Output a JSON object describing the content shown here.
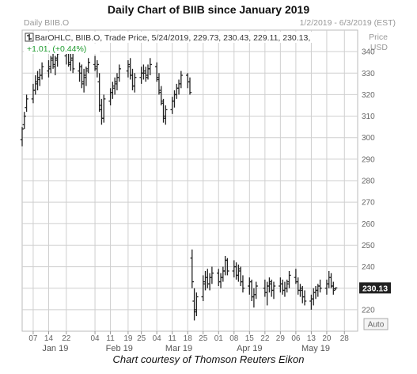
{
  "title": "Daily Chart of BIIB since January 2019",
  "caption": "Chart courtesy of Thomson Reuters Eikon",
  "header": {
    "panel_label": "Daily BIIB.O",
    "date_range": "1/2/2019 - 6/3/2019 (EST)",
    "price_label": "Price",
    "currency": "USD",
    "legend_line": "BarOHLC, BIIB.O, Trade Price, 5/24/2019, 229.73, 230.43, 229.11, 230.13,",
    "change_line": "+1.01, (+0.44%)"
  },
  "auto_button": "Auto",
  "last_price_tag": "230.13",
  "colors": {
    "bars": "#222222",
    "change": "#1e9b2e",
    "last_tag_bg": "#222222",
    "grid": "#cfcfcf"
  },
  "chart_data": {
    "type": "ohlc",
    "ticker": "BIIB.O",
    "ylim": [
      210,
      350
    ],
    "y_ticks": [
      220,
      230,
      240,
      250,
      260,
      270,
      280,
      290,
      300,
      310,
      320,
      330,
      340
    ],
    "x_range": [
      "2019-01-02",
      "2019-06-03"
    ],
    "x_day_ticks": [
      {
        "label": "07",
        "date": "2019-01-07"
      },
      {
        "label": "14",
        "date": "2019-01-14"
      },
      {
        "label": "22",
        "date": "2019-01-22"
      },
      {
        "label": "04",
        "date": "2019-02-04"
      },
      {
        "label": "11",
        "date": "2019-02-11"
      },
      {
        "label": "19",
        "date": "2019-02-19"
      },
      {
        "label": "25",
        "date": "2019-02-25"
      },
      {
        "label": "04",
        "date": "2019-03-04"
      },
      {
        "label": "11",
        "date": "2019-03-11"
      },
      {
        "label": "18",
        "date": "2019-03-18"
      },
      {
        "label": "25",
        "date": "2019-03-25"
      },
      {
        "label": "01",
        "date": "2019-04-01"
      },
      {
        "label": "08",
        "date": "2019-04-08"
      },
      {
        "label": "15",
        "date": "2019-04-15"
      },
      {
        "label": "22",
        "date": "2019-04-22"
      },
      {
        "label": "29",
        "date": "2019-04-29"
      },
      {
        "label": "06",
        "date": "2019-05-06"
      },
      {
        "label": "13",
        "date": "2019-05-13"
      },
      {
        "label": "20",
        "date": "2019-05-20"
      },
      {
        "label": "28",
        "date": "2019-05-28"
      }
    ],
    "x_month_ticks": [
      {
        "label": "Jan 19",
        "date": "2019-01-17"
      },
      {
        "label": "Feb 19",
        "date": "2019-02-15"
      },
      {
        "label": "Mar 19",
        "date": "2019-03-14"
      },
      {
        "label": "Apr 19",
        "date": "2019-04-15"
      },
      {
        "label": "May 19",
        "date": "2019-05-15"
      }
    ],
    "bars": [
      {
        "date": "2019-01-02",
        "o": 299,
        "h": 305,
        "l": 296,
        "c": 304
      },
      {
        "date": "2019-01-03",
        "o": 306,
        "h": 312,
        "l": 304,
        "c": 310
      },
      {
        "date": "2019-01-04",
        "o": 314,
        "h": 320,
        "l": 312,
        "c": 318
      },
      {
        "date": "2019-01-07",
        "o": 318,
        "h": 325,
        "l": 316,
        "c": 322
      },
      {
        "date": "2019-01-08",
        "o": 322,
        "h": 329,
        "l": 320,
        "c": 326
      },
      {
        "date": "2019-01-09",
        "o": 325,
        "h": 331,
        "l": 322,
        "c": 328
      },
      {
        "date": "2019-01-10",
        "o": 327,
        "h": 332,
        "l": 324,
        "c": 329
      },
      {
        "date": "2019-01-11",
        "o": 329,
        "h": 335,
        "l": 327,
        "c": 333
      },
      {
        "date": "2019-01-14",
        "o": 331,
        "h": 336,
        "l": 328,
        "c": 332
      },
      {
        "date": "2019-01-15",
        "o": 333,
        "h": 338,
        "l": 330,
        "c": 337
      },
      {
        "date": "2019-01-16",
        "o": 336,
        "h": 340,
        "l": 332,
        "c": 334
      },
      {
        "date": "2019-01-17",
        "o": 333,
        "h": 338,
        "l": 329,
        "c": 336
      },
      {
        "date": "2019-01-18",
        "o": 337,
        "h": 341,
        "l": 333,
        "c": 339
      },
      {
        "date": "2019-01-22",
        "o": 338,
        "h": 343,
        "l": 334,
        "c": 340
      },
      {
        "date": "2019-01-23",
        "o": 340,
        "h": 342,
        "l": 333,
        "c": 335
      },
      {
        "date": "2019-01-24",
        "o": 334,
        "h": 339,
        "l": 331,
        "c": 337
      },
      {
        "date": "2019-01-25",
        "o": 336,
        "h": 339,
        "l": 330,
        "c": 332
      },
      {
        "date": "2019-01-28",
        "o": 331,
        "h": 335,
        "l": 326,
        "c": 333
      },
      {
        "date": "2019-01-29",
        "o": 330,
        "h": 334,
        "l": 323,
        "c": 325
      },
      {
        "date": "2019-01-30",
        "o": 326,
        "h": 332,
        "l": 321,
        "c": 329
      },
      {
        "date": "2019-01-31",
        "o": 328,
        "h": 333,
        "l": 324,
        "c": 331
      },
      {
        "date": "2019-02-01",
        "o": 332,
        "h": 337,
        "l": 330,
        "c": 335
      },
      {
        "date": "2019-02-04",
        "o": 334,
        "h": 338,
        "l": 331,
        "c": 332
      },
      {
        "date": "2019-02-05",
        "o": 333,
        "h": 336,
        "l": 328,
        "c": 334
      },
      {
        "date": "2019-02-06",
        "o": 326,
        "h": 330,
        "l": 312,
        "c": 315
      },
      {
        "date": "2019-02-07",
        "o": 313,
        "h": 318,
        "l": 306,
        "c": 309
      },
      {
        "date": "2019-02-08",
        "o": 309,
        "h": 320,
        "l": 307,
        "c": 318
      },
      {
        "date": "2019-02-11",
        "o": 317,
        "h": 323,
        "l": 315,
        "c": 321
      },
      {
        "date": "2019-02-12",
        "o": 321,
        "h": 326,
        "l": 318,
        "c": 324
      },
      {
        "date": "2019-02-13",
        "o": 323,
        "h": 328,
        "l": 320,
        "c": 326
      },
      {
        "date": "2019-02-14",
        "o": 325,
        "h": 330,
        "l": 322,
        "c": 328
      },
      {
        "date": "2019-02-15",
        "o": 328,
        "h": 334,
        "l": 326,
        "c": 332
      },
      {
        "date": "2019-02-19",
        "o": 331,
        "h": 336,
        "l": 328,
        "c": 334
      },
      {
        "date": "2019-02-20",
        "o": 333,
        "h": 337,
        "l": 327,
        "c": 329
      },
      {
        "date": "2019-02-21",
        "o": 329,
        "h": 332,
        "l": 322,
        "c": 324
      },
      {
        "date": "2019-02-22",
        "o": 324,
        "h": 330,
        "l": 321,
        "c": 328
      },
      {
        "date": "2019-02-25",
        "o": 328,
        "h": 333,
        "l": 325,
        "c": 330
      },
      {
        "date": "2019-02-26",
        "o": 330,
        "h": 334,
        "l": 327,
        "c": 331
      },
      {
        "date": "2019-02-27",
        "o": 330,
        "h": 333,
        "l": 326,
        "c": 328
      },
      {
        "date": "2019-02-28",
        "o": 329,
        "h": 334,
        "l": 327,
        "c": 332
      },
      {
        "date": "2019-03-01",
        "o": 332,
        "h": 337,
        "l": 329,
        "c": 334
      },
      {
        "date": "2019-03-04",
        "o": 333,
        "h": 335,
        "l": 326,
        "c": 328
      },
      {
        "date": "2019-03-05",
        "o": 327,
        "h": 330,
        "l": 320,
        "c": 322
      },
      {
        "date": "2019-03-06",
        "o": 321,
        "h": 324,
        "l": 315,
        "c": 317
      },
      {
        "date": "2019-03-07",
        "o": 316,
        "h": 318,
        "l": 307,
        "c": 310
      },
      {
        "date": "2019-03-08",
        "o": 309,
        "h": 315,
        "l": 306,
        "c": 313
      },
      {
        "date": "2019-03-11",
        "o": 313,
        "h": 319,
        "l": 311,
        "c": 317
      },
      {
        "date": "2019-03-12",
        "o": 317,
        "h": 322,
        "l": 314,
        "c": 320
      },
      {
        "date": "2019-03-13",
        "o": 320,
        "h": 325,
        "l": 318,
        "c": 323
      },
      {
        "date": "2019-03-14",
        "o": 323,
        "h": 327,
        "l": 320,
        "c": 325
      },
      {
        "date": "2019-03-15",
        "o": 325,
        "h": 331,
        "l": 323,
        "c": 329
      },
      {
        "date": "2019-03-18",
        "o": 329,
        "h": 330,
        "l": 323,
        "c": 326
      },
      {
        "date": "2019-03-19",
        "o": 326,
        "h": 328,
        "l": 320,
        "c": 321
      },
      {
        "date": "2019-03-20",
        "o": 244,
        "h": 248,
        "l": 230,
        "c": 233
      },
      {
        "date": "2019-03-21",
        "o": 224,
        "h": 230,
        "l": 215,
        "c": 219
      },
      {
        "date": "2019-03-22",
        "o": 220,
        "h": 228,
        "l": 217,
        "c": 226
      },
      {
        "date": "2019-03-25",
        "o": 226,
        "h": 236,
        "l": 224,
        "c": 233
      },
      {
        "date": "2019-03-26",
        "o": 232,
        "h": 238,
        "l": 229,
        "c": 235
      },
      {
        "date": "2019-03-27",
        "o": 235,
        "h": 239,
        "l": 230,
        "c": 232
      },
      {
        "date": "2019-03-28",
        "o": 232,
        "h": 237,
        "l": 229,
        "c": 235
      },
      {
        "date": "2019-03-29",
        "o": 235,
        "h": 240,
        "l": 232,
        "c": 237
      },
      {
        "date": "2019-04-01",
        "o": 237,
        "h": 239,
        "l": 231,
        "c": 233
      },
      {
        "date": "2019-04-02",
        "o": 233,
        "h": 237,
        "l": 230,
        "c": 235
      },
      {
        "date": "2019-04-03",
        "o": 235,
        "h": 240,
        "l": 233,
        "c": 238
      },
      {
        "date": "2019-04-04",
        "o": 238,
        "h": 245,
        "l": 236,
        "c": 243
      },
      {
        "date": "2019-04-05",
        "o": 243,
        "h": 244,
        "l": 236,
        "c": 238
      },
      {
        "date": "2019-04-08",
        "o": 238,
        "h": 243,
        "l": 235,
        "c": 240
      },
      {
        "date": "2019-04-09",
        "o": 240,
        "h": 242,
        "l": 234,
        "c": 236
      },
      {
        "date": "2019-04-10",
        "o": 236,
        "h": 241,
        "l": 233,
        "c": 239
      },
      {
        "date": "2019-04-11",
        "o": 238,
        "h": 240,
        "l": 231,
        "c": 233
      },
      {
        "date": "2019-04-12",
        "o": 233,
        "h": 236,
        "l": 228,
        "c": 230
      },
      {
        "date": "2019-04-15",
        "o": 231,
        "h": 235,
        "l": 227,
        "c": 233
      },
      {
        "date": "2019-04-16",
        "o": 233,
        "h": 234,
        "l": 224,
        "c": 226
      },
      {
        "date": "2019-04-17",
        "o": 226,
        "h": 230,
        "l": 221,
        "c": 227
      },
      {
        "date": "2019-04-18",
        "o": 227,
        "h": 233,
        "l": 225,
        "c": 231
      },
      {
        "date": "2019-04-22",
        "o": 230,
        "h": 234,
        "l": 226,
        "c": 228
      },
      {
        "date": "2019-04-23",
        "o": 228,
        "h": 233,
        "l": 222,
        "c": 231
      },
      {
        "date": "2019-04-24",
        "o": 231,
        "h": 235,
        "l": 228,
        "c": 233
      },
      {
        "date": "2019-04-25",
        "o": 232,
        "h": 234,
        "l": 226,
        "c": 229
      },
      {
        "date": "2019-04-26",
        "o": 229,
        "h": 233,
        "l": 225,
        "c": 231
      },
      {
        "date": "2019-04-29",
        "o": 231,
        "h": 235,
        "l": 228,
        "c": 232
      },
      {
        "date": "2019-04-30",
        "o": 232,
        "h": 234,
        "l": 227,
        "c": 229
      },
      {
        "date": "2019-05-01",
        "o": 229,
        "h": 233,
        "l": 226,
        "c": 230
      },
      {
        "date": "2019-05-02",
        "o": 230,
        "h": 234,
        "l": 228,
        "c": 232
      },
      {
        "date": "2019-05-03",
        "o": 233,
        "h": 238,
        "l": 230,
        "c": 236
      },
      {
        "date": "2019-05-06",
        "o": 235,
        "h": 239,
        "l": 232,
        "c": 233
      },
      {
        "date": "2019-05-07",
        "o": 233,
        "h": 235,
        "l": 227,
        "c": 229
      },
      {
        "date": "2019-05-08",
        "o": 229,
        "h": 232,
        "l": 226,
        "c": 230
      },
      {
        "date": "2019-05-09",
        "o": 229,
        "h": 231,
        "l": 223,
        "c": 226
      },
      {
        "date": "2019-05-10",
        "o": 226,
        "h": 229,
        "l": 222,
        "c": 224
      },
      {
        "date": "2019-05-13",
        "o": 224,
        "h": 227,
        "l": 220,
        "c": 225
      },
      {
        "date": "2019-05-14",
        "o": 225,
        "h": 230,
        "l": 222,
        "c": 228
      },
      {
        "date": "2019-05-15",
        "o": 228,
        "h": 231,
        "l": 225,
        "c": 229
      },
      {
        "date": "2019-05-16",
        "o": 229,
        "h": 232,
        "l": 226,
        "c": 231
      },
      {
        "date": "2019-05-17",
        "o": 231,
        "h": 234,
        "l": 228,
        "c": 230
      },
      {
        "date": "2019-05-20",
        "o": 230,
        "h": 234,
        "l": 227,
        "c": 232
      },
      {
        "date": "2019-05-21",
        "o": 232,
        "h": 238,
        "l": 230,
        "c": 235
      },
      {
        "date": "2019-05-22",
        "o": 235,
        "h": 237,
        "l": 230,
        "c": 231
      },
      {
        "date": "2019-05-23",
        "o": 231,
        "h": 233,
        "l": 227,
        "c": 229
      },
      {
        "date": "2019-05-24",
        "o": 229.73,
        "h": 230.43,
        "l": 229.11,
        "c": 230.13
      }
    ]
  }
}
